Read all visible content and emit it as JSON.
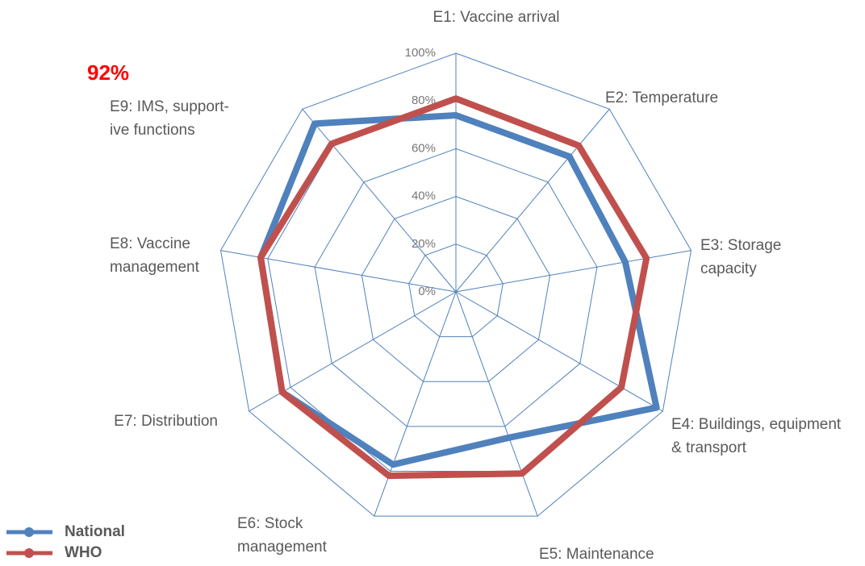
{
  "chart_data": {
    "type": "radar",
    "annotation": "92%",
    "categories": [
      [
        "E1: Vaccine arrival"
      ],
      [
        "E2: Temperature"
      ],
      [
        "E3: Storage",
        "capacity"
      ],
      [
        "E4: Buildings, equipment",
        "& transport"
      ],
      [
        "E5: Maintenance"
      ],
      [
        "E6: Stock",
        "management"
      ],
      [
        "E7: Distribution"
      ],
      [
        "E8: Vaccine",
        "management"
      ],
      [
        "E9: IMS, support-",
        "ive functions"
      ]
    ],
    "series": [
      {
        "name": "National",
        "color": "#4f81bd",
        "values": [
          74,
          74,
          72,
          97,
          65,
          77,
          84,
          83,
          92
        ]
      },
      {
        "name": "WHO",
        "color": "#c0504d",
        "values": [
          81,
          80,
          81,
          80,
          81,
          82,
          84,
          83,
          81
        ]
      }
    ],
    "ylim": [
      0,
      100
    ],
    "yticks": [
      {
        "value": 0,
        "label": "0%"
      },
      {
        "value": 20,
        "label": "20%"
      },
      {
        "value": 40,
        "label": "40%"
      },
      {
        "value": 60,
        "label": "60%"
      },
      {
        "value": 80,
        "label": "80%"
      },
      {
        "value": 100,
        "label": "100%"
      }
    ],
    "grid": true,
    "grid_color": "#4f81bd",
    "annotation_color": "#ff0000",
    "legend": "lower left"
  }
}
